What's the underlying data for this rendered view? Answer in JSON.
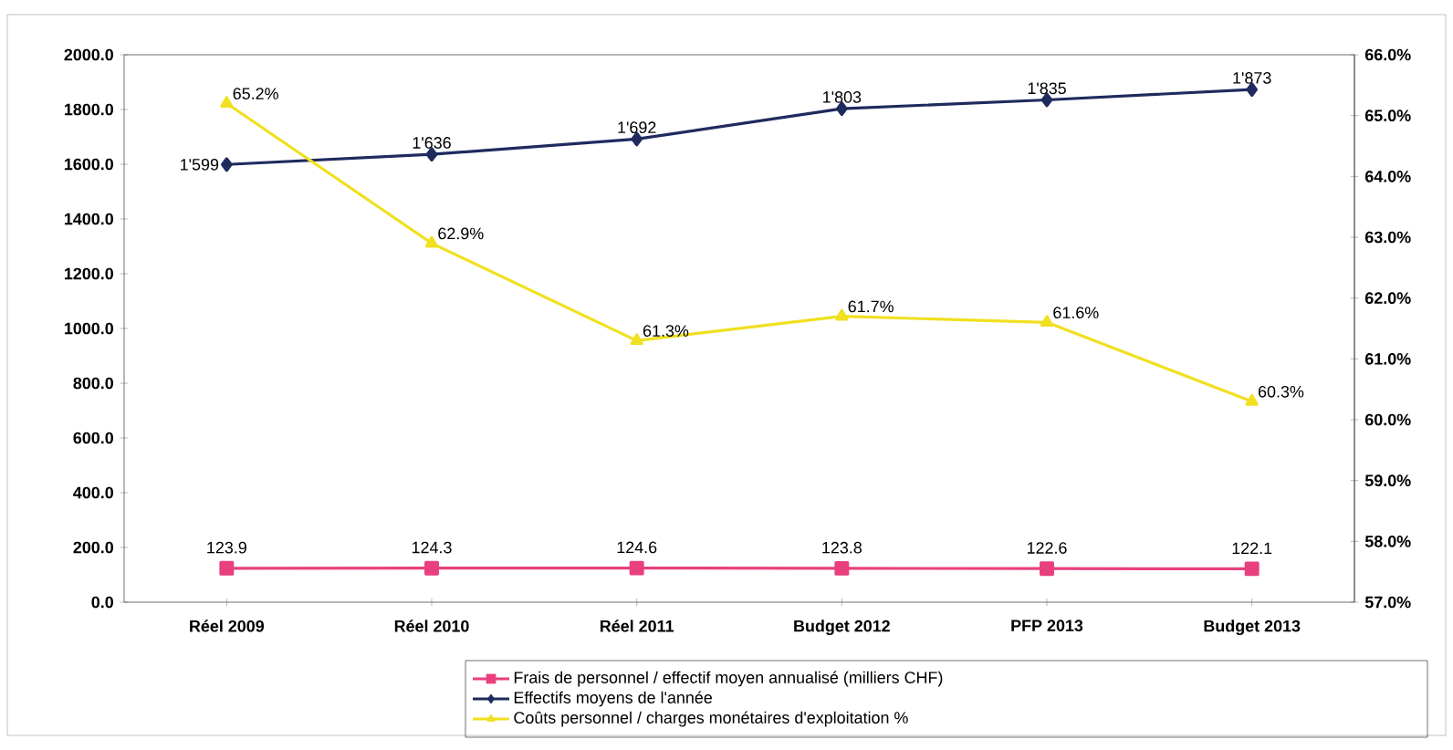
{
  "chart_data": {
    "type": "line",
    "categories": [
      "Réel 2009",
      "Réel 2010",
      "Réel 2011",
      "Budget 2012",
      "PFP 2013",
      "Budget 2013"
    ],
    "ylim": [
      0,
      2000
    ],
    "yticks": [
      {
        "value": 0,
        "label": "0.0"
      },
      {
        "value": 200,
        "label": "200.0"
      },
      {
        "value": 400,
        "label": "400.0"
      },
      {
        "value": 600,
        "label": "600.0"
      },
      {
        "value": 800,
        "label": "800.0"
      },
      {
        "value": 1000,
        "label": "1000.0"
      },
      {
        "value": 1200,
        "label": "1200.0"
      },
      {
        "value": 1400,
        "label": "1400.0"
      },
      {
        "value": 1600,
        "label": "1600.0"
      },
      {
        "value": 1800,
        "label": "1800.0"
      },
      {
        "value": 2000,
        "label": "2000.0"
      }
    ],
    "y2lim": [
      57,
      66
    ],
    "y2ticks": [
      {
        "value": 57,
        "label": "57.0%"
      },
      {
        "value": 58,
        "label": "58.0%"
      },
      {
        "value": 59,
        "label": "59.0%"
      },
      {
        "value": 60,
        "label": "60.0%"
      },
      {
        "value": 61,
        "label": "61.0%"
      },
      {
        "value": 62,
        "label": "62.0%"
      },
      {
        "value": 63,
        "label": "63.0%"
      },
      {
        "value": 64,
        "label": "64.0%"
      },
      {
        "value": 65,
        "label": "65.0%"
      },
      {
        "value": 66,
        "label": "66.0%"
      }
    ],
    "legend": "bottom",
    "grid": false,
    "series": [
      {
        "name": "Frais de personnel / effectif moyen annualisé (milliers CHF)",
        "color": "#e8407f",
        "marker": "square",
        "values": [
          123.9,
          124.3,
          124.6,
          123.8,
          122.6,
          122.1
        ],
        "value_labels": [
          "123.9",
          "124.3",
          "124.6",
          "123.8",
          "122.6",
          "122.1"
        ]
      },
      {
        "name": "Effectifs moyens de l'année",
        "color": "#1f2a5e",
        "marker": "diamond",
        "values": [
          1599,
          1636,
          1692,
          1803,
          1835,
          1873
        ],
        "value_labels": [
          "1'599",
          "1'636",
          "1'692",
          "1'803",
          "1'835",
          "1'873"
        ]
      },
      {
        "name": "Coûts personnel / charges monétaires d'exploitation %",
        "color": "#f0e020",
        "marker": "triangle",
        "axis": "y2",
        "values": [
          65.2,
          62.9,
          61.3,
          61.7,
          61.6,
          60.3
        ],
        "value_labels": [
          "65.2%",
          "62.9%",
          "61.3%",
          "61.7%",
          "61.6%",
          "60.3%"
        ]
      }
    ]
  }
}
